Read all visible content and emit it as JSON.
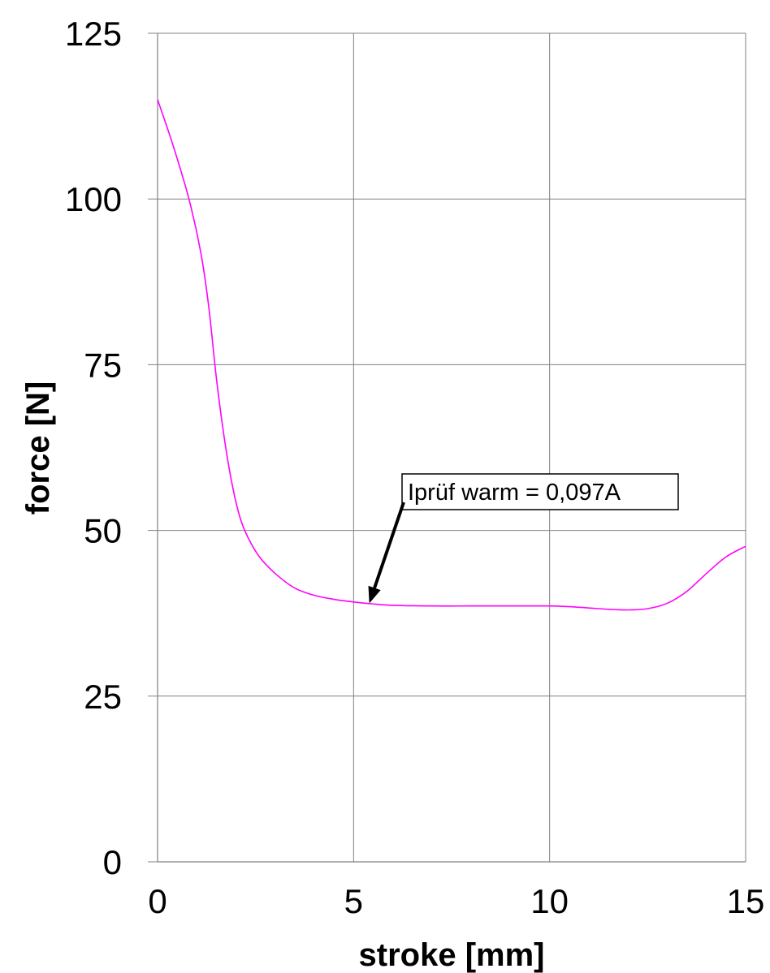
{
  "chart_data": {
    "type": "line",
    "title": "",
    "xlabel": "stroke [mm]",
    "ylabel": "force [N]",
    "xlim": [
      0,
      15
    ],
    "ylim": [
      0,
      125
    ],
    "xticks": [
      0,
      5,
      10,
      15
    ],
    "yticks": [
      0,
      25,
      50,
      75,
      100,
      125
    ],
    "grid": true,
    "colors": {
      "series": "#ff00ff",
      "grid": "#808080",
      "text": "#000000"
    },
    "series": [
      {
        "x": [
          0,
          0.4,
          0.8,
          1.1,
          1.3,
          1.5,
          1.7,
          1.9,
          2.1,
          2.3,
          2.6,
          3.0,
          3.5,
          4.0,
          4.5,
          5.0,
          5.5,
          6.0,
          7.0,
          8.0,
          9.0,
          10.0,
          10.5,
          11.0,
          11.5,
          12.0,
          12.5,
          13.0,
          13.5,
          14.0,
          14.5,
          15.0
        ],
        "y": [
          115,
          108,
          100,
          92,
          84,
          73,
          64,
          57,
          52,
          49,
          46,
          43.5,
          41.3,
          40.2,
          39.6,
          39.2,
          38.9,
          38.7,
          38.6,
          38.6,
          38.6,
          38.6,
          38.5,
          38.3,
          38.1,
          38.0,
          38.2,
          39.0,
          40.8,
          43.5,
          46.0,
          47.6
        ]
      }
    ],
    "annotations": [
      {
        "text": "Iprüf warm = 0,097A",
        "x": 5.4,
        "y": 39.0
      }
    ]
  }
}
